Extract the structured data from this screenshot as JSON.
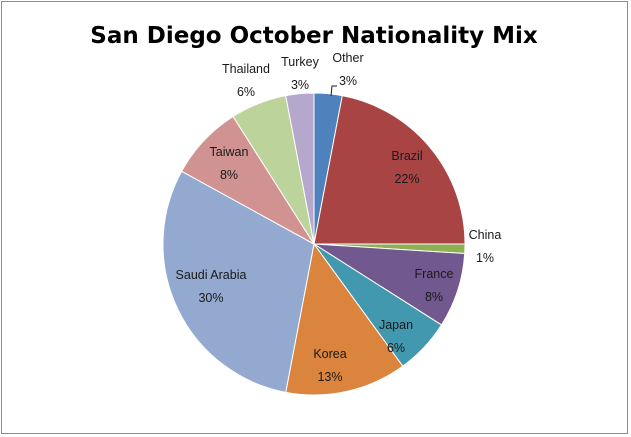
{
  "chart_data": {
    "type": "pie",
    "title": "San Diego October Nationality Mix",
    "slices": [
      {
        "label": "Other",
        "value": 3,
        "display": "3%",
        "color": "#4f81bd"
      },
      {
        "label": "Brazil",
        "value": 22,
        "display": "22%",
        "color": "#a94444"
      },
      {
        "label": "China",
        "value": 1,
        "display": "1%",
        "color": "#8db152"
      },
      {
        "label": "France",
        "value": 8,
        "display": "8%",
        "color": "#71588f"
      },
      {
        "label": "Japan",
        "value": 6,
        "display": "6%",
        "color": "#4198af"
      },
      {
        "label": "Korea",
        "value": 13,
        "display": "13%",
        "color": "#db843d"
      },
      {
        "label": "Saudi Arabia",
        "value": 30,
        "display": "30%",
        "color": "#93a9cf"
      },
      {
        "label": "Taiwan",
        "value": 8,
        "display": "8%",
        "color": "#d19392"
      },
      {
        "label": "Thailand",
        "value": 6,
        "display": "6%",
        "color": "#bcd39b"
      },
      {
        "label": "Turkey",
        "value": 3,
        "display": "3%",
        "color": "#b6a8cc"
      }
    ]
  }
}
